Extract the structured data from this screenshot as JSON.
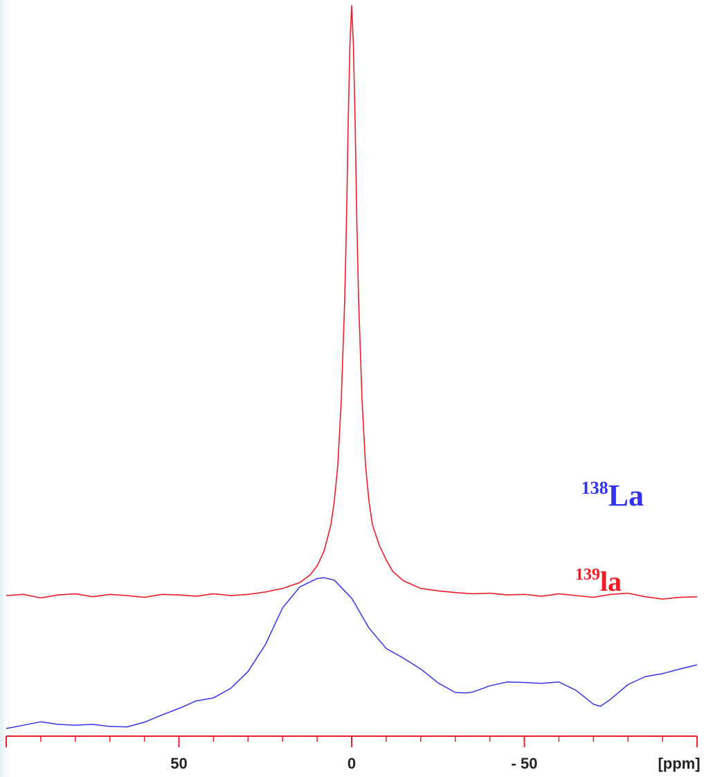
{
  "chart_data": {
    "type": "line",
    "title": "",
    "xlabel": "[ppm]",
    "ylabel": "",
    "x_reversed": true,
    "xlim": [
      100,
      -100
    ],
    "x_major_ticks": [
      100,
      50,
      0,
      -50,
      -100
    ],
    "x_minor_step": 10,
    "tick_labels": [
      {
        "value": 50,
        "text": "50"
      },
      {
        "value": 0,
        "text": "0"
      },
      {
        "value": -50,
        "text": "- 50"
      }
    ],
    "axis_color": "#e8202a",
    "grid": false,
    "series": [
      {
        "name": "139la",
        "isotope_mass": "139",
        "isotope_symbol": "la",
        "color": "#ee1c24",
        "peak_ppm": 0,
        "note_values": "relative intensity",
        "x": [
          100,
          95,
          90,
          85,
          80,
          75,
          70,
          65,
          60,
          55,
          50,
          45,
          40,
          35,
          30,
          25,
          20,
          15,
          12,
          10,
          8,
          6,
          5,
          4,
          3,
          2,
          1.5,
          1,
          0.5,
          0,
          -0.5,
          -1,
          -1.5,
          -2,
          -3,
          -4,
          -5,
          -6,
          -8,
          -10,
          -12,
          -15,
          -20,
          -25,
          -30,
          -35,
          -40,
          -45,
          -50,
          -55,
          -60,
          -65,
          -70,
          -75,
          -80,
          -85,
          -90,
          -95,
          -100
        ],
        "values": [
          0.0,
          0.2,
          -0.4,
          0.1,
          0.3,
          -0.2,
          0.2,
          0.0,
          -0.3,
          0.2,
          0.1,
          -0.1,
          0.3,
          0.0,
          0.2,
          0.6,
          1.2,
          2.2,
          3.5,
          5.0,
          7.5,
          12,
          16,
          22,
          33,
          50,
          63,
          80,
          93,
          100,
          93,
          80,
          63,
          50,
          33,
          22,
          16,
          12,
          8.5,
          6.0,
          4.0,
          2.5,
          1.2,
          0.8,
          0.5,
          0.3,
          0.4,
          0.1,
          0.2,
          -0.1,
          0.3,
          0.0,
          -0.3,
          0.2,
          0.4,
          -0.2,
          -0.6,
          -0.3,
          -0.2
        ]
      },
      {
        "name": "138La",
        "isotope_mass": "138",
        "isotope_symbol": "La",
        "color": "#3333ee",
        "peak_ppm": 8,
        "note_values": "relative intensity",
        "x": [
          100,
          95,
          90,
          85,
          80,
          75,
          70,
          65,
          60,
          55,
          50,
          45,
          40,
          35,
          30,
          25,
          20,
          15,
          10,
          8,
          5,
          0,
          -5,
          -10,
          -15,
          -20,
          -25,
          -30,
          -33,
          -35,
          -40,
          -45,
          -50,
          -55,
          -60,
          -65,
          -70,
          -72,
          -75,
          -80,
          -85,
          -90,
          -95,
          -100
        ],
        "values": [
          0.0,
          0.8,
          1.6,
          1.0,
          0.8,
          1.0,
          0.5,
          0.4,
          1.5,
          3.2,
          4.8,
          6.6,
          7.3,
          9.6,
          13.6,
          20.0,
          28.8,
          33.8,
          35.8,
          36.0,
          35.4,
          31.1,
          24.0,
          19.1,
          16.8,
          14.2,
          10.9,
          8.6,
          8.5,
          8.7,
          10.2,
          11.1,
          11.0,
          10.8,
          11.1,
          9.1,
          5.8,
          5.3,
          7.0,
          10.5,
          12.4,
          13.1,
          14.2,
          15.2
        ]
      }
    ]
  }
}
